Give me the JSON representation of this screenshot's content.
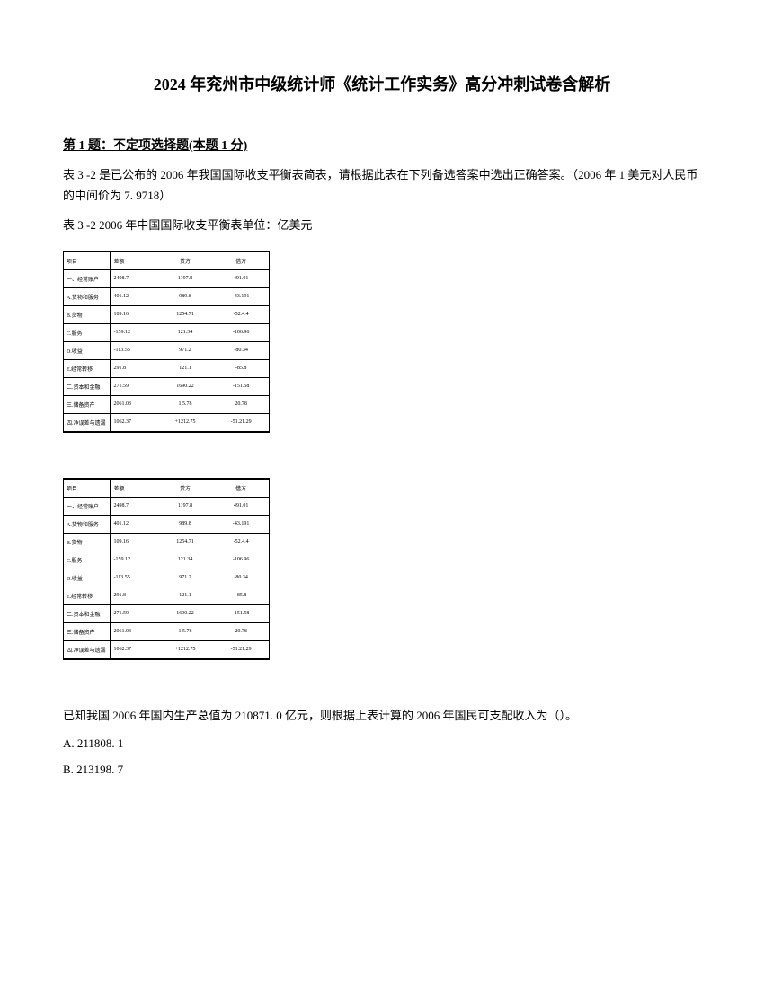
{
  "document": {
    "title": "2024 年兖州市中级统计师《统计工作实务》高分冲刺试卷含解析",
    "question_header": "第 1 题：不定项选择题(本题 1 分)",
    "question_body": "表 3 -2 是已公布的 2006 年我国国际收支平衡表简表，请根据此表在下列备选答案中选出正确答案。（2006 年 1 美元对人民币的中间价为 7. 9718）",
    "table_caption": "表 3 -2 2006 年中国国际收支平衡表单位：亿美元",
    "table": {
      "headers": [
        "项目",
        "差额",
        "贷方",
        "借方"
      ],
      "rows": [
        [
          "一、经常账户",
          "2498.7",
          "1197.8",
          "491.01"
        ],
        [
          "A.货物和服务",
          "401.12",
          "989.8",
          "-43.191"
        ],
        [
          "B.货物",
          "109.16",
          "1254.71",
          "-52.4.4"
        ],
        [
          "C.服务",
          "-159.12",
          "121.34",
          "-106.96"
        ],
        [
          "D.收益",
          "-113.55",
          "971.2",
          "-80.34"
        ],
        [
          "E.经常转移",
          "291.8",
          "121.1",
          "-85.8"
        ],
        [
          "二.资本和金融",
          "271.59",
          "1690.22",
          "-151.58"
        ],
        [
          "三.储备资产",
          "2061.03",
          "1.5.78",
          "20.78"
        ],
        [
          "四.净误差与遗漏",
          "1062.37",
          "+1212.75",
          "-51.21.29"
        ]
      ]
    },
    "final_question": "已知我国 2006 年国内生产总值为 210871. 0 亿元，则根据上表计算的 2006 年国民可支配收入为（）。",
    "options": [
      "A. 211808. 1",
      "B. 213198. 7"
    ]
  }
}
